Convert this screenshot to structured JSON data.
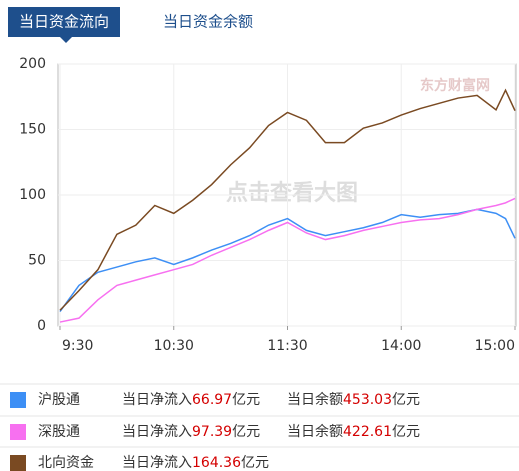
{
  "chart_data": {
    "type": "line",
    "tabs": [
      "当日资金流向",
      "当日资金余额"
    ],
    "watermark": "点击查看大图",
    "watermark_logo": "东方财富网",
    "x": [
      0,
      10,
      20,
      30,
      40,
      50,
      60,
      70,
      80,
      90,
      100,
      110,
      120,
      130,
      140,
      150,
      160,
      170,
      180,
      190,
      200,
      210,
      220,
      230,
      235,
      240
    ],
    "xlim": [
      0,
      240
    ],
    "xticks": [
      {
        "value": 0,
        "label": "9:30"
      },
      {
        "value": 60,
        "label": "10:30"
      },
      {
        "value": 120,
        "label": "11:30"
      },
      {
        "value": 180,
        "label": "14:00"
      },
      {
        "value": 240,
        "label": "15:00"
      }
    ],
    "ylim": [
      0,
      200
    ],
    "yticks": [
      0,
      50,
      100,
      150,
      200
    ],
    "grid": true,
    "legend_labels": {
      "inflow": "当日净流入",
      "balance": "当日余额",
      "unit": "亿元"
    },
    "series": [
      {
        "name": "沪股通",
        "color": "#3d8ff5",
        "net_inflow": 66.97,
        "balance": 453.03,
        "values": [
          11,
          31,
          41,
          45,
          49,
          52,
          47,
          52,
          58,
          63,
          69,
          77,
          82,
          73,
          69,
          72,
          75,
          79,
          85,
          83,
          85,
          86,
          89,
          86,
          82,
          66.97
        ]
      },
      {
        "name": "深股通",
        "color": "#f770f0",
        "net_inflow": 97.39,
        "balance": 422.61,
        "values": [
          3,
          6,
          20,
          31,
          35,
          39,
          43,
          47,
          54,
          60,
          66,
          73,
          79,
          71,
          66,
          69,
          73,
          76,
          79,
          81,
          82,
          85,
          89,
          92,
          94,
          97.39
        ]
      },
      {
        "name": "北向资金",
        "color": "#7a4a22",
        "net_inflow": 164.36,
        "values": [
          12,
          27,
          43,
          70,
          77,
          92,
          86,
          96,
          108,
          123,
          136,
          153,
          163,
          157,
          140,
          140,
          151,
          155,
          161,
          166,
          170,
          174,
          176,
          165,
          180,
          164.36
        ]
      }
    ]
  }
}
